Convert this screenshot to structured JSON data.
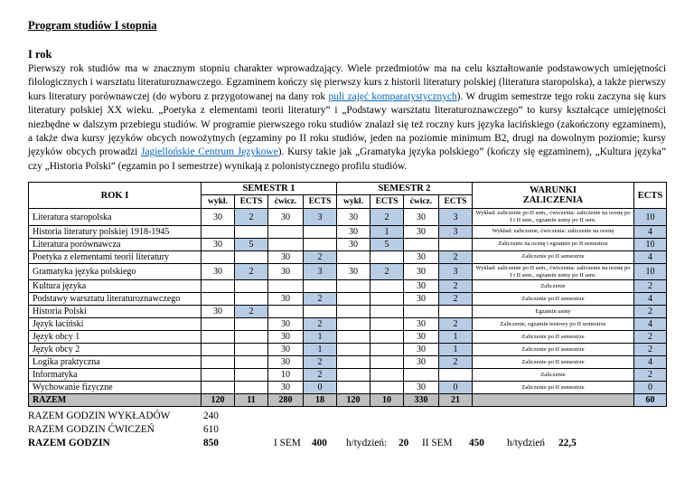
{
  "doc": {
    "title": "Program studiów I stopnia",
    "year_heading": "I rok",
    "paragraph": [
      {
        "text": "Pierwszy rok studiów ma w znacznym stopniu charakter wprowadzający. Wiele przedmiotów ma na celu kształtowanie podstawowych umiejętności filologicznych i warsztatu literaturoznawczego. Egzaminem kończy się pierwszy kurs z historii literatury polskiej (literatura staropolska), a także pierwszy kurs literatury porównawczej (do wyboru z przygotowanej na dany rok ",
        "link": false
      },
      {
        "text": "puli zajęć komparatystycznych",
        "link": true
      },
      {
        "text": "). W drugim semestrze tego roku zaczyna się kurs literatury polskiej XX wieku. „Poetyka z elementami teorii literatury” i „Podstawy warsztatu literaturoznawczego” to kursy kształcące umiejętności niezbędne w dalszym przebiegu studiów. W programie pierwszego roku studiów znalazł się też roczny kurs języka łacińskiego (zakończony egzaminem), a także dwa kursy języków obcych nowożytnych (egzaminy po II roku studiów, jeden na poziomie minimum B2, drugi na dowolnym poziomie; kursy języków obcych prowadzi ",
        "link": false
      },
      {
        "text": "Jagiellońskie Centrum Językowe",
        "link": true
      },
      {
        "text": "). Kursy takie jak „Gramatyka języka polskiego” (kończy się egzaminem), „Kultura języka” czy „Historia Polski” (egzamin po I semestrze) wynikają z polonistycznego profilu studiów.",
        "link": false
      }
    ]
  },
  "table": {
    "headers": {
      "rok": "ROK I",
      "sem1": "SEMESTR 1",
      "sem2": "SEMESTR 2",
      "warunki": "WARUNKI\nZALICZENIA",
      "ects": "ECTS",
      "sub": [
        "wykł.",
        "ECTS",
        "ćwicz.",
        "ECTS",
        "wykł.",
        "ECTS",
        "ćwicz.",
        "ECTS"
      ]
    },
    "rows": [
      {
        "name": "Literatura staropolska",
        "cells": [
          "30",
          "2",
          "30",
          "3",
          "30",
          "2",
          "30",
          "3"
        ],
        "warunki": "Wykład: zaliczenie po II sem., ćwiczenia: zaliczenie na ocenę po I i II sem., egzamin ustny po II sem.",
        "ects": "10"
      },
      {
        "name": "Historia literatury polskiej 1918-1945",
        "cells": [
          "",
          "",
          "",
          "",
          "30",
          "1",
          "30",
          "3"
        ],
        "warunki": "Wykład: zaliczenie, ćwiczenia: zaliczenie na ocenę",
        "ects": "4"
      },
      {
        "name": "Literatura porównawcza",
        "cells": [
          "30",
          "5",
          "",
          "",
          "30",
          "5",
          "",
          ""
        ],
        "warunki": "Zaliczenie na ocenę i egzamin po II semestrze",
        "ects": "10"
      },
      {
        "name": "Poetyka z elementami teorii literatury",
        "cells": [
          "",
          "",
          "30",
          "2",
          "",
          "",
          "30",
          "2"
        ],
        "warunki": "Zaliczenie po II semestrze",
        "ects": "4"
      },
      {
        "name": "Gramatyka języka polskiego",
        "cells": [
          "30",
          "2",
          "30",
          "3",
          "30",
          "2",
          "30",
          "3"
        ],
        "warunki": "Wykład: zaliczenie po II sem., ćwiczenia: zaliczenie na ocenę po I i II sem., egzamin ustny po II sem.",
        "ects": "10"
      },
      {
        "name": "Kultura języka",
        "cells": [
          "",
          "",
          "",
          "",
          "",
          "",
          "30",
          "2"
        ],
        "warunki": "Zaliczenie",
        "ects": "2"
      },
      {
        "name": "Podstawy warsztatu literaturoznawczego",
        "cells": [
          "",
          "",
          "30",
          "2",
          "",
          "",
          "30",
          "2"
        ],
        "warunki": "Zaliczenie po II semestrze",
        "ects": "4"
      },
      {
        "name": "Historia Polski",
        "cells": [
          "30",
          "2",
          "",
          "",
          "",
          "",
          "",
          ""
        ],
        "warunki": "Egzamin ustny",
        "ects": "2"
      },
      {
        "name": "Język łaciński",
        "cells": [
          "",
          "",
          "30",
          "2",
          "",
          "",
          "30",
          "2"
        ],
        "warunki": "Zaliczenie, egzamin testowy po II semestrze",
        "ects": "4"
      },
      {
        "name": "Język obcy 1",
        "cells": [
          "",
          "",
          "30",
          "1",
          "",
          "",
          "30",
          "1"
        ],
        "warunki": "Zaliczenie po II semestrze",
        "ects": "2"
      },
      {
        "name": "Język obcy 2",
        "cells": [
          "",
          "",
          "30",
          "1",
          "",
          "",
          "30",
          "1"
        ],
        "warunki": "Zaliczenie po II semestrze",
        "ects": "2"
      },
      {
        "name": "Logika praktyczna",
        "cells": [
          "",
          "",
          "30",
          "2",
          "",
          "",
          "30",
          "2"
        ],
        "warunki": "Zaliczenie po II semestrze",
        "ects": "4"
      },
      {
        "name": "Informatyka",
        "cells": [
          "",
          "",
          "10",
          "2",
          "",
          "",
          "",
          ""
        ],
        "warunki": "Zaliczenie",
        "ects": "2"
      },
      {
        "name": "Wychowanie fizyczne",
        "cells": [
          "",
          "",
          "30",
          "0",
          "",
          "",
          "30",
          "0"
        ],
        "warunki": "Zaliczenie po II semestrze",
        "ects": "0"
      }
    ],
    "total_row": {
      "name": "RAZEM",
      "cells": [
        "120",
        "11",
        "280",
        "18",
        "120",
        "10",
        "330",
        "21"
      ],
      "warunki": "",
      "ects": "60"
    }
  },
  "summary": {
    "lectures_label": "RAZEM GODZIN WYKŁADÓW",
    "lectures_value": "240",
    "exercises_label": "RAZEM GODZIN ĆWICZEŃ",
    "exercises_value": "610",
    "total_label": "RAZEM GODZIN",
    "total_value": "850",
    "sem1_label": "I SEM",
    "sem1_value": "400",
    "sem1_per_week_label": "h/tydzień:",
    "sem1_per_week": "20",
    "sem2_label": "II SEM",
    "sem2_value": "450",
    "sem2_per_week_label": "h/tydzień",
    "sem2_per_week": "22,5"
  },
  "colors": {
    "ects_bg": "#b8cce4",
    "total_bg": "#bfbfbf",
    "link": "#0563c1"
  }
}
